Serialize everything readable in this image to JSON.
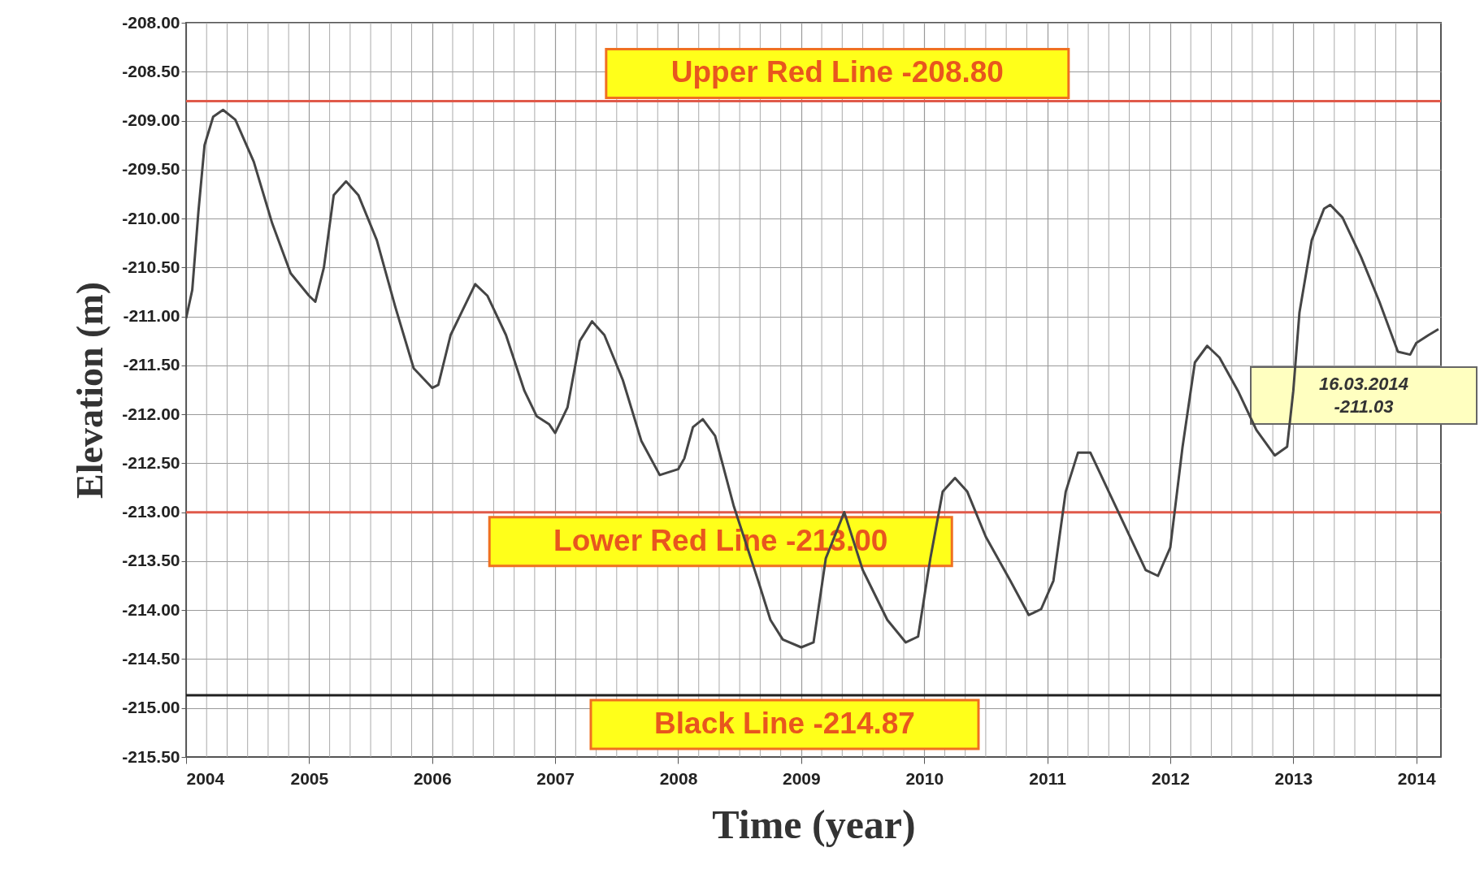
{
  "chart_data": {
    "type": "line",
    "xlabel": "Time (year)",
    "ylabel": "Elevation (m)",
    "x": [
      2004.0,
      2004.05,
      2004.1,
      2004.15,
      2004.22,
      2004.3,
      2004.4,
      2004.55,
      2004.7,
      2004.85,
      2005.0,
      2005.05,
      2005.12,
      2005.2,
      2005.3,
      2005.4,
      2005.55,
      2005.7,
      2005.85,
      2006.0,
      2006.05,
      2006.15,
      2006.25,
      2006.35,
      2006.45,
      2006.6,
      2006.75,
      2006.85,
      2006.95,
      2007.0,
      2007.1,
      2007.2,
      2007.3,
      2007.4,
      2007.55,
      2007.7,
      2007.85,
      2008.0,
      2008.05,
      2008.12,
      2008.2,
      2008.3,
      2008.45,
      2008.65,
      2008.75,
      2008.85,
      2009.0,
      2009.1,
      2009.2,
      2009.35,
      2009.5,
      2009.7,
      2009.85,
      2009.95,
      2010.05,
      2010.15,
      2010.25,
      2010.35,
      2010.5,
      2010.7,
      2010.85,
      2010.95,
      2011.05,
      2011.15,
      2011.25,
      2011.35,
      2011.5,
      2011.65,
      2011.8,
      2011.9,
      2012.0,
      2012.1,
      2012.2,
      2012.3,
      2012.4,
      2012.55,
      2012.7,
      2012.85,
      2012.95,
      2013.0,
      2013.05,
      2013.15,
      2013.25,
      2013.3,
      2013.4,
      2013.55,
      2013.7,
      2013.85,
      2013.95,
      2014.0,
      2014.1,
      2014.18
    ],
    "series": [
      {
        "color": "#454545",
        "values": [
          -211.02,
          -210.73,
          -209.93,
          -209.25,
          -208.96,
          -208.89,
          -208.99,
          -209.42,
          -210.05,
          -210.56,
          -210.79,
          -210.85,
          -210.5,
          -209.76,
          -209.62,
          -209.76,
          -210.22,
          -210.9,
          -211.53,
          -211.73,
          -211.7,
          -211.19,
          -210.93,
          -210.67,
          -210.79,
          -211.19,
          -211.76,
          -212.02,
          -212.1,
          -212.19,
          -211.93,
          -211.25,
          -211.05,
          -211.19,
          -211.65,
          -212.27,
          -212.62,
          -212.56,
          -212.45,
          -212.13,
          -212.05,
          -212.22,
          -212.93,
          -213.7,
          -214.1,
          -214.3,
          -214.38,
          -214.33,
          -213.47,
          -213.0,
          -213.59,
          -214.1,
          -214.33,
          -214.27,
          -213.47,
          -212.79,
          -212.65,
          -212.79,
          -213.25,
          -213.7,
          -214.05,
          -213.99,
          -213.7,
          -212.79,
          -212.39,
          -212.39,
          -212.79,
          -213.19,
          -213.59,
          -213.65,
          -213.36,
          -212.33,
          -211.47,
          -211.3,
          -211.42,
          -211.76,
          -212.16,
          -212.42,
          -212.33,
          -211.76,
          -210.96,
          -210.22,
          -209.9,
          -209.86,
          -209.99,
          -210.39,
          -210.85,
          -211.36,
          -211.39,
          -211.27,
          -211.19,
          -211.13
        ]
      }
    ],
    "xlim": [
      2004,
      2014.2
    ],
    "xticks": [
      2004,
      2005,
      2006,
      2007,
      2008,
      2009,
      2010,
      2011,
      2012,
      2013,
      2014
    ],
    "ylim": [
      -215.5,
      -208
    ],
    "yticks": [
      {
        "value": -215.5,
        "label": "-215.50"
      },
      {
        "value": -215,
        "label": "-215.00"
      },
      {
        "value": -214.5,
        "label": "-214.50"
      },
      {
        "value": -214,
        "label": "-214.00"
      },
      {
        "value": -213.5,
        "label": "-213.50"
      },
      {
        "value": -213,
        "label": "-213.00"
      },
      {
        "value": -212.5,
        "label": "-212.50"
      },
      {
        "value": -212,
        "label": "-212.00"
      },
      {
        "value": -211.5,
        "label": "-211.50"
      },
      {
        "value": -211,
        "label": "-211.00"
      },
      {
        "value": -210.5,
        "label": "-210.50"
      },
      {
        "value": -210,
        "label": "-210.00"
      },
      {
        "value": -209.5,
        "label": "-209.50"
      },
      {
        "value": -209,
        "label": "-209.00"
      },
      {
        "value": -208.5,
        "label": "-208.50"
      },
      {
        "value": -208,
        "label": "-208.00"
      }
    ],
    "grid": true,
    "ref_lines": [
      {
        "axis": "y",
        "value": -208.8,
        "label": "Upper Red Line  -208.80",
        "color": "#e05a4a"
      },
      {
        "axis": "y",
        "value": -213.0,
        "label": "Lower Red Line  -213.00",
        "color": "#e05a4a"
      },
      {
        "axis": "y",
        "value": -214.87,
        "label": "Black Line  -214.87",
        "color": "#202020"
      }
    ],
    "annotations": [
      "16.03.2014\n-211.03"
    ]
  }
}
